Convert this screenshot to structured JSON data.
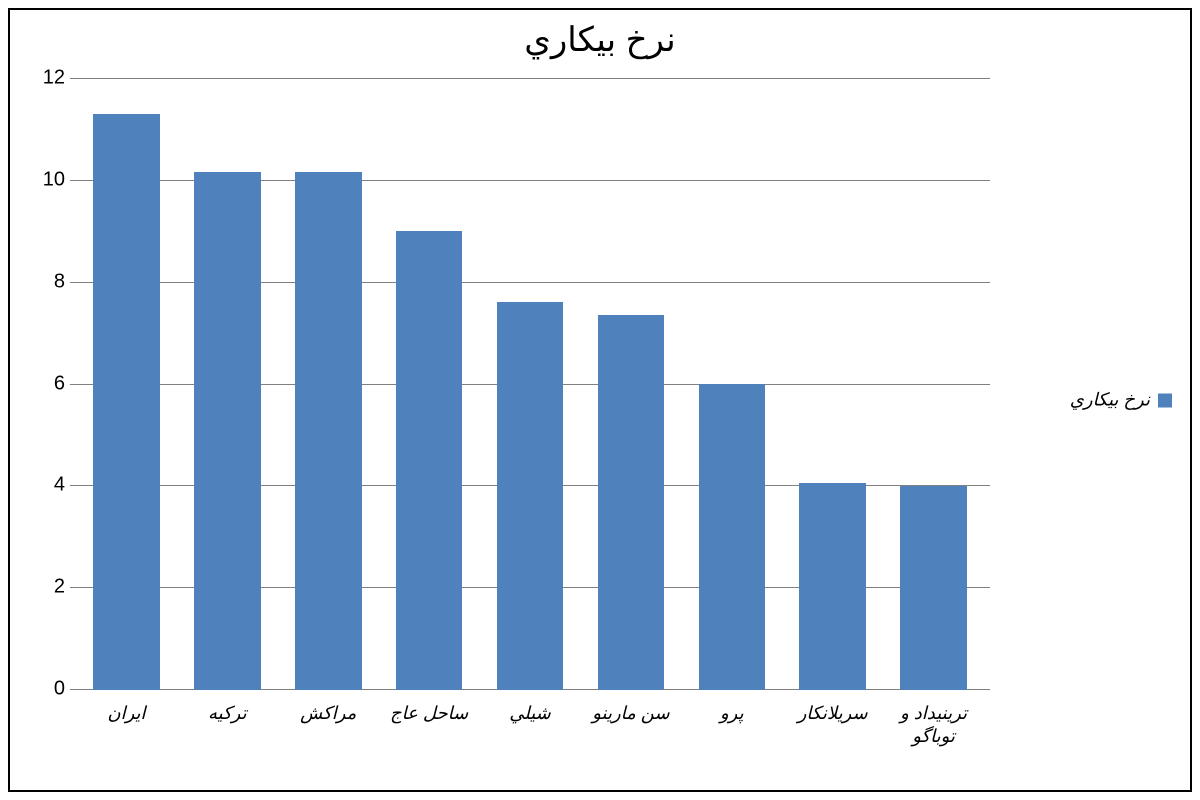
{
  "chart": {
    "type": "bar",
    "title": "نرخ بيكاري",
    "title_fontsize": 34,
    "background_color": "#ffffff",
    "border_color": "#000000",
    "grid_color": "#808080",
    "label_fontsize": 18,
    "tick_fontsize": 20,
    "bar_width": 0.66,
    "ylim": [
      0,
      12
    ],
    "ytick_step": 2,
    "yticks": [
      0,
      2,
      4,
      6,
      8,
      10,
      12
    ],
    "series": {
      "name": "نرخ بيكاري",
      "color": "#4f81bd"
    },
    "categories": [
      "ايران",
      "تركيه",
      "مراكش",
      "ساحل عاج",
      "شيلي",
      "سن مارينو",
      "پرو",
      "سريلانكار",
      "ترينيداد و توباگو"
    ],
    "values": [
      11.3,
      10.15,
      10.15,
      9.0,
      7.6,
      7.35,
      6.0,
      4.05,
      4.0
    ],
    "legend_position": "right-middle"
  }
}
